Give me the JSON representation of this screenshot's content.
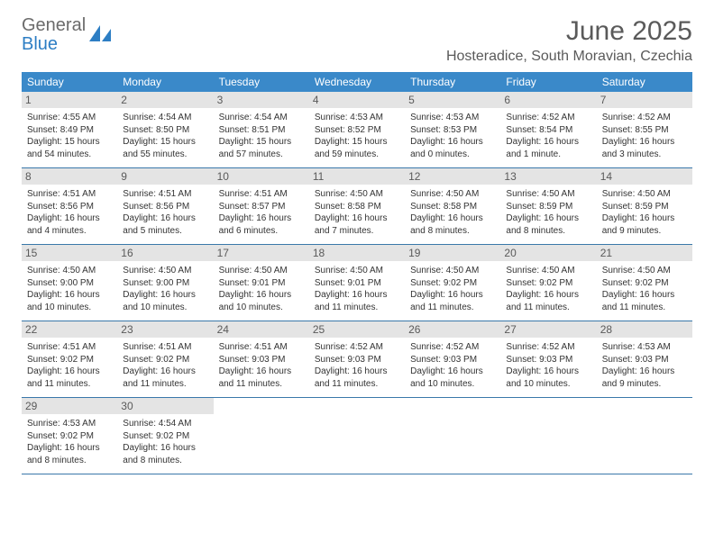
{
  "logo": {
    "word1": "General",
    "word2": "Blue"
  },
  "header": {
    "month_title": "June 2025",
    "location": "Hosteradice, South Moravian, Czechia"
  },
  "colors": {
    "header_bg": "#3a89c9",
    "header_text": "#ffffff",
    "daynum_bg": "#e4e4e4",
    "daynum_text": "#5a5a5a",
    "row_border": "#3a78aa",
    "body_text": "#333333",
    "logo_gray": "#6b6b6b",
    "logo_blue": "#2d7ec4"
  },
  "day_headers": [
    "Sunday",
    "Monday",
    "Tuesday",
    "Wednesday",
    "Thursday",
    "Friday",
    "Saturday"
  ],
  "weeks": [
    [
      {
        "n": "1",
        "sunrise": "Sunrise: 4:55 AM",
        "sunset": "Sunset: 8:49 PM",
        "day1": "Daylight: 15 hours",
        "day2": "and 54 minutes."
      },
      {
        "n": "2",
        "sunrise": "Sunrise: 4:54 AM",
        "sunset": "Sunset: 8:50 PM",
        "day1": "Daylight: 15 hours",
        "day2": "and 55 minutes."
      },
      {
        "n": "3",
        "sunrise": "Sunrise: 4:54 AM",
        "sunset": "Sunset: 8:51 PM",
        "day1": "Daylight: 15 hours",
        "day2": "and 57 minutes."
      },
      {
        "n": "4",
        "sunrise": "Sunrise: 4:53 AM",
        "sunset": "Sunset: 8:52 PM",
        "day1": "Daylight: 15 hours",
        "day2": "and 59 minutes."
      },
      {
        "n": "5",
        "sunrise": "Sunrise: 4:53 AM",
        "sunset": "Sunset: 8:53 PM",
        "day1": "Daylight: 16 hours",
        "day2": "and 0 minutes."
      },
      {
        "n": "6",
        "sunrise": "Sunrise: 4:52 AM",
        "sunset": "Sunset: 8:54 PM",
        "day1": "Daylight: 16 hours",
        "day2": "and 1 minute."
      },
      {
        "n": "7",
        "sunrise": "Sunrise: 4:52 AM",
        "sunset": "Sunset: 8:55 PM",
        "day1": "Daylight: 16 hours",
        "day2": "and 3 minutes."
      }
    ],
    [
      {
        "n": "8",
        "sunrise": "Sunrise: 4:51 AM",
        "sunset": "Sunset: 8:56 PM",
        "day1": "Daylight: 16 hours",
        "day2": "and 4 minutes."
      },
      {
        "n": "9",
        "sunrise": "Sunrise: 4:51 AM",
        "sunset": "Sunset: 8:56 PM",
        "day1": "Daylight: 16 hours",
        "day2": "and 5 minutes."
      },
      {
        "n": "10",
        "sunrise": "Sunrise: 4:51 AM",
        "sunset": "Sunset: 8:57 PM",
        "day1": "Daylight: 16 hours",
        "day2": "and 6 minutes."
      },
      {
        "n": "11",
        "sunrise": "Sunrise: 4:50 AM",
        "sunset": "Sunset: 8:58 PM",
        "day1": "Daylight: 16 hours",
        "day2": "and 7 minutes."
      },
      {
        "n": "12",
        "sunrise": "Sunrise: 4:50 AM",
        "sunset": "Sunset: 8:58 PM",
        "day1": "Daylight: 16 hours",
        "day2": "and 8 minutes."
      },
      {
        "n": "13",
        "sunrise": "Sunrise: 4:50 AM",
        "sunset": "Sunset: 8:59 PM",
        "day1": "Daylight: 16 hours",
        "day2": "and 8 minutes."
      },
      {
        "n": "14",
        "sunrise": "Sunrise: 4:50 AM",
        "sunset": "Sunset: 8:59 PM",
        "day1": "Daylight: 16 hours",
        "day2": "and 9 minutes."
      }
    ],
    [
      {
        "n": "15",
        "sunrise": "Sunrise: 4:50 AM",
        "sunset": "Sunset: 9:00 PM",
        "day1": "Daylight: 16 hours",
        "day2": "and 10 minutes."
      },
      {
        "n": "16",
        "sunrise": "Sunrise: 4:50 AM",
        "sunset": "Sunset: 9:00 PM",
        "day1": "Daylight: 16 hours",
        "day2": "and 10 minutes."
      },
      {
        "n": "17",
        "sunrise": "Sunrise: 4:50 AM",
        "sunset": "Sunset: 9:01 PM",
        "day1": "Daylight: 16 hours",
        "day2": "and 10 minutes."
      },
      {
        "n": "18",
        "sunrise": "Sunrise: 4:50 AM",
        "sunset": "Sunset: 9:01 PM",
        "day1": "Daylight: 16 hours",
        "day2": "and 11 minutes."
      },
      {
        "n": "19",
        "sunrise": "Sunrise: 4:50 AM",
        "sunset": "Sunset: 9:02 PM",
        "day1": "Daylight: 16 hours",
        "day2": "and 11 minutes."
      },
      {
        "n": "20",
        "sunrise": "Sunrise: 4:50 AM",
        "sunset": "Sunset: 9:02 PM",
        "day1": "Daylight: 16 hours",
        "day2": "and 11 minutes."
      },
      {
        "n": "21",
        "sunrise": "Sunrise: 4:50 AM",
        "sunset": "Sunset: 9:02 PM",
        "day1": "Daylight: 16 hours",
        "day2": "and 11 minutes."
      }
    ],
    [
      {
        "n": "22",
        "sunrise": "Sunrise: 4:51 AM",
        "sunset": "Sunset: 9:02 PM",
        "day1": "Daylight: 16 hours",
        "day2": "and 11 minutes."
      },
      {
        "n": "23",
        "sunrise": "Sunrise: 4:51 AM",
        "sunset": "Sunset: 9:02 PM",
        "day1": "Daylight: 16 hours",
        "day2": "and 11 minutes."
      },
      {
        "n": "24",
        "sunrise": "Sunrise: 4:51 AM",
        "sunset": "Sunset: 9:03 PM",
        "day1": "Daylight: 16 hours",
        "day2": "and 11 minutes."
      },
      {
        "n": "25",
        "sunrise": "Sunrise: 4:52 AM",
        "sunset": "Sunset: 9:03 PM",
        "day1": "Daylight: 16 hours",
        "day2": "and 11 minutes."
      },
      {
        "n": "26",
        "sunrise": "Sunrise: 4:52 AM",
        "sunset": "Sunset: 9:03 PM",
        "day1": "Daylight: 16 hours",
        "day2": "and 10 minutes."
      },
      {
        "n": "27",
        "sunrise": "Sunrise: 4:52 AM",
        "sunset": "Sunset: 9:03 PM",
        "day1": "Daylight: 16 hours",
        "day2": "and 10 minutes."
      },
      {
        "n": "28",
        "sunrise": "Sunrise: 4:53 AM",
        "sunset": "Sunset: 9:03 PM",
        "day1": "Daylight: 16 hours",
        "day2": "and 9 minutes."
      }
    ],
    [
      {
        "n": "29",
        "sunrise": "Sunrise: 4:53 AM",
        "sunset": "Sunset: 9:02 PM",
        "day1": "Daylight: 16 hours",
        "day2": "and 8 minutes."
      },
      {
        "n": "30",
        "sunrise": "Sunrise: 4:54 AM",
        "sunset": "Sunset: 9:02 PM",
        "day1": "Daylight: 16 hours",
        "day2": "and 8 minutes."
      },
      {
        "empty": true
      },
      {
        "empty": true
      },
      {
        "empty": true
      },
      {
        "empty": true
      },
      {
        "empty": true
      }
    ]
  ]
}
